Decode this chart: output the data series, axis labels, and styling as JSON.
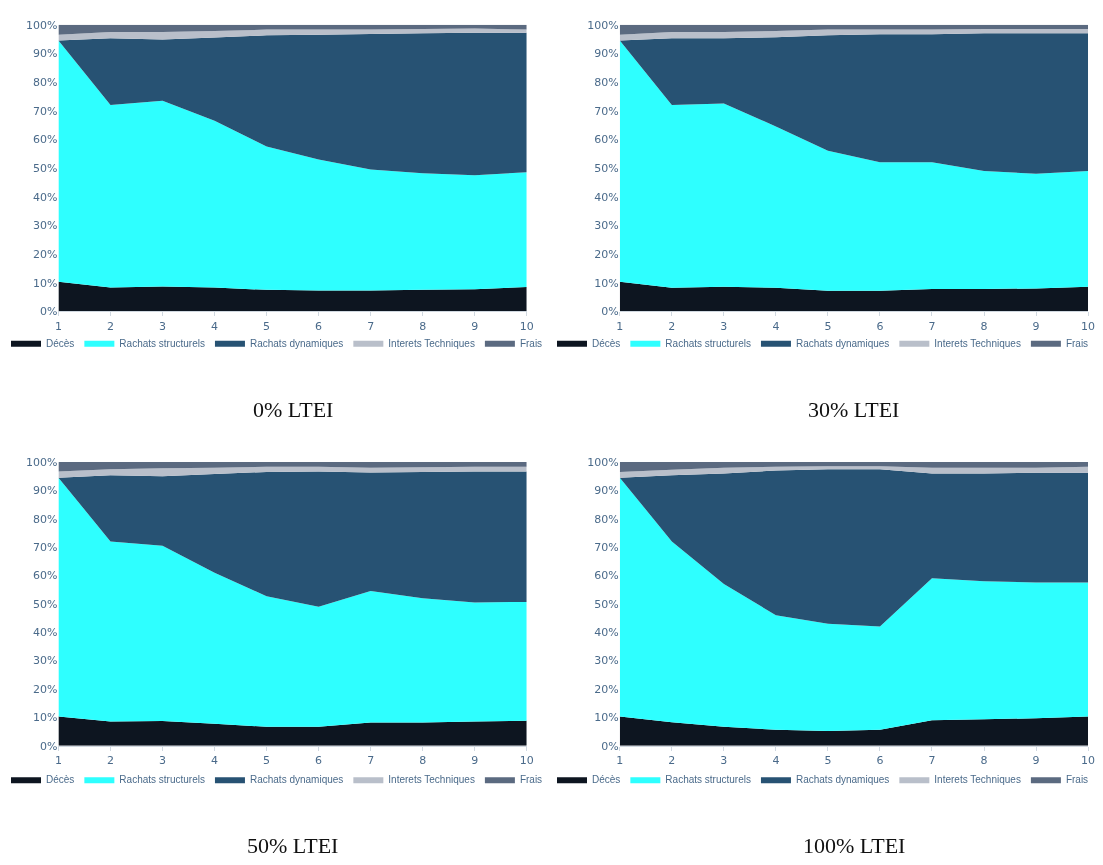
{
  "chart_data": [
    {
      "type": "area",
      "title": "0% LTEI",
      "stacked": true,
      "x": [
        1,
        2,
        3,
        4,
        5,
        6,
        7,
        8,
        9,
        10
      ],
      "xlim": [
        1,
        10
      ],
      "xticks": [
        1,
        2,
        3,
        4,
        5,
        6,
        7,
        8,
        9,
        10
      ],
      "ylim": [
        0,
        100
      ],
      "yticks": [
        {
          "value": 0,
          "label": "0%"
        },
        {
          "value": 10,
          "label": "10%"
        },
        {
          "value": 20,
          "label": "20%"
        },
        {
          "value": 30,
          "label": "30%"
        },
        {
          "value": 40,
          "label": "40%"
        },
        {
          "value": 50,
          "label": "50%"
        },
        {
          "value": 60,
          "label": "60%"
        },
        {
          "value": 70,
          "label": "70%"
        },
        {
          "value": 80,
          "label": "80%"
        },
        {
          "value": 90,
          "label": "90%"
        },
        {
          "value": 100,
          "label": "100%"
        }
      ],
      "legend": "bottom",
      "series": [
        {
          "name": "Décès",
          "color": "#0d1520",
          "values": [
            10.3,
            8.3,
            8.7,
            8.3,
            7.5,
            7.3,
            7.3,
            7.5,
            7.7,
            8.5
          ]
        },
        {
          "name": "Rachats structurels",
          "color": "#2effff",
          "values": [
            84.2,
            63.7,
            64.8,
            58.2,
            50,
            45.7,
            42.2,
            40.7,
            39.8,
            40
          ]
        },
        {
          "name": "Rachats dynamiques",
          "color": "#275273",
          "values": [
            0,
            23.3,
            21.3,
            29,
            38.8,
            43.5,
            47.3,
            48.8,
            49.7,
            48.7
          ]
        },
        {
          "name": "Interets Techniques",
          "color": "#b9bfca",
          "values": [
            2,
            2.2,
            2.7,
            2.3,
            2,
            1.8,
            1.5,
            1.5,
            1.5,
            1.1
          ]
        },
        {
          "name": "Frais",
          "color": "#5b6a80",
          "values": [
            3.5,
            2.5,
            2.5,
            2.2,
            1.7,
            1.7,
            1.7,
            1.5,
            1.3,
            1.7
          ]
        }
      ]
    },
    {
      "type": "area",
      "title": "30% LTEI",
      "stacked": true,
      "x": [
        1,
        2,
        3,
        4,
        5,
        6,
        7,
        8,
        9,
        10
      ],
      "xlim": [
        1,
        10
      ],
      "xticks": [
        1,
        2,
        3,
        4,
        5,
        6,
        7,
        8,
        9,
        10
      ],
      "ylim": [
        0,
        100
      ],
      "yticks": [
        {
          "value": 0,
          "label": "0%"
        },
        {
          "value": 10,
          "label": "10%"
        },
        {
          "value": 20,
          "label": "20%"
        },
        {
          "value": 30,
          "label": "30%"
        },
        {
          "value": 40,
          "label": "40%"
        },
        {
          "value": 50,
          "label": "50%"
        },
        {
          "value": 60,
          "label": "60%"
        },
        {
          "value": 70,
          "label": "70%"
        },
        {
          "value": 80,
          "label": "80%"
        },
        {
          "value": 90,
          "label": "90%"
        },
        {
          "value": 100,
          "label": "100%"
        }
      ],
      "legend": "bottom",
      "series": [
        {
          "name": "Décès",
          "color": "#0d1520",
          "values": [
            10.3,
            8.2,
            8.6,
            8.2,
            7.2,
            7.2,
            7.8,
            7.8,
            8,
            8.6
          ]
        },
        {
          "name": "Rachats structurels",
          "color": "#2effff",
          "values": [
            84.2,
            63.8,
            63.9,
            56.3,
            48.8,
            44.8,
            44.2,
            41.2,
            40,
            40.4
          ]
        },
        {
          "name": "Rachats dynamiques",
          "color": "#275273",
          "values": [
            0,
            23.3,
            22.8,
            31.1,
            40.3,
            44.7,
            44.7,
            48,
            49,
            48
          ]
        },
        {
          "name": "Interets Techniques",
          "color": "#b9bfca",
          "values": [
            2,
            2.2,
            2.2,
            2.2,
            2,
            1.6,
            1.6,
            1.5,
            1.5,
            1.5
          ]
        },
        {
          "name": "Frais",
          "color": "#5b6a80",
          "values": [
            3.5,
            2.5,
            2.5,
            2.2,
            1.7,
            1.7,
            1.7,
            1.5,
            1.5,
            1.5
          ]
        }
      ]
    },
    {
      "type": "area",
      "title": "50% LTEI",
      "stacked": true,
      "x": [
        1,
        2,
        3,
        4,
        5,
        6,
        7,
        8,
        9,
        10
      ],
      "xlim": [
        1,
        10
      ],
      "xticks": [
        1,
        2,
        3,
        4,
        5,
        6,
        7,
        8,
        9,
        10
      ],
      "ylim": [
        0,
        100
      ],
      "yticks": [
        {
          "value": 0,
          "label": "0%"
        },
        {
          "value": 10,
          "label": "10%"
        },
        {
          "value": 20,
          "label": "20%"
        },
        {
          "value": 30,
          "label": "30%"
        },
        {
          "value": 40,
          "label": "40%"
        },
        {
          "value": 50,
          "label": "50%"
        },
        {
          "value": 60,
          "label": "60%"
        },
        {
          "value": 70,
          "label": "70%"
        },
        {
          "value": 80,
          "label": "80%"
        },
        {
          "value": 90,
          "label": "90%"
        },
        {
          "value": 100,
          "label": "100%"
        }
      ],
      "legend": "bottom",
      "series": [
        {
          "name": "Décès",
          "color": "#0d1520",
          "values": [
            10.3,
            8.5,
            8.7,
            7.7,
            6.7,
            6.7,
            8.2,
            8.2,
            8.5,
            8.8
          ]
        },
        {
          "name": "Rachats structurels",
          "color": "#2effff",
          "values": [
            84.2,
            63.5,
            61.8,
            53.3,
            46,
            42.3,
            46.3,
            43.8,
            42,
            41.9
          ]
        },
        {
          "name": "Rachats dynamiques",
          "color": "#275273",
          "values": [
            0,
            23.3,
            24.5,
            34.8,
            43.8,
            47.7,
            41.8,
            44.5,
            46.2,
            46
          ]
        },
        {
          "name": "Interets Techniques",
          "color": "#b9bfca",
          "values": [
            2.2,
            2.2,
            2.8,
            2.2,
            1.8,
            1.6,
            1.7,
            1.7,
            1.6,
            1.6
          ]
        },
        {
          "name": "Frais",
          "color": "#5b6a80",
          "values": [
            3.3,
            2.5,
            2.2,
            2,
            1.7,
            1.7,
            2,
            1.8,
            1.7,
            1.7
          ]
        }
      ]
    },
    {
      "type": "area",
      "title": "100% LTEI",
      "stacked": true,
      "x": [
        1,
        2,
        3,
        4,
        5,
        6,
        7,
        8,
        9,
        10
      ],
      "xlim": [
        1,
        10
      ],
      "xticks": [
        1,
        2,
        3,
        4,
        5,
        6,
        7,
        8,
        9,
        10
      ],
      "ylim": [
        0,
        100
      ],
      "yticks": [
        {
          "value": 0,
          "label": "0%"
        },
        {
          "value": 10,
          "label": "10%"
        },
        {
          "value": 20,
          "label": "20%"
        },
        {
          "value": 30,
          "label": "30%"
        },
        {
          "value": 40,
          "label": "40%"
        },
        {
          "value": 50,
          "label": "50%"
        },
        {
          "value": 60,
          "label": "60%"
        },
        {
          "value": 70,
          "label": "70%"
        },
        {
          "value": 80,
          "label": "80%"
        },
        {
          "value": 90,
          "label": "90%"
        },
        {
          "value": 100,
          "label": "100%"
        }
      ],
      "legend": "bottom",
      "series": [
        {
          "name": "Décès",
          "color": "#0d1520",
          "values": [
            10.3,
            8.3,
            6.7,
            5.6,
            5.2,
            5.6,
            9,
            9.3,
            9.7,
            10.3
          ]
        },
        {
          "name": "Rachats structurels",
          "color": "#2effff",
          "values": [
            84.2,
            63.7,
            50.3,
            40.4,
            37.8,
            36.4,
            50,
            48.7,
            47.8,
            47.2
          ]
        },
        {
          "name": "Rachats dynamiques",
          "color": "#275273",
          "values": [
            0,
            23.3,
            39,
            51,
            54.5,
            55.5,
            37,
            38,
            38.7,
            38.7
          ]
        },
        {
          "name": "Interets Techniques",
          "color": "#b9bfca",
          "values": [
            2,
            2,
            2,
            1.3,
            1,
            1,
            2,
            2,
            1.8,
            2.1
          ]
        },
        {
          "name": "Frais",
          "color": "#5b6a80",
          "values": [
            3.5,
            2.7,
            2,
            1.7,
            1.5,
            1.5,
            2,
            2,
            2,
            1.7
          ]
        }
      ]
    }
  ]
}
